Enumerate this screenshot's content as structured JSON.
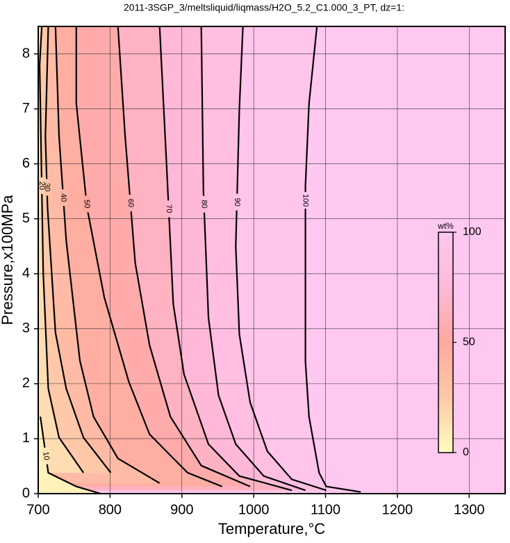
{
  "chart_data": {
    "type": "contour",
    "title": "2011-3SGP_3/meltsliquid/liqmass/H2O_5.2_C1.000_3_PT, dz=1:",
    "x_label": "Temperature,°C",
    "y_label": "Pressure,x100MPa",
    "xlim": [
      700,
      1350
    ],
    "ylim": [
      0,
      8.5
    ],
    "xticks": [
      700,
      800,
      900,
      1000,
      1100,
      1200,
      1300
    ],
    "yticks": [
      0,
      1,
      2,
      3,
      4,
      5,
      6,
      7,
      8
    ],
    "grid": true,
    "colormap": [
      "#fffcc0",
      "#ffc8a8",
      "#ffa8a0",
      "#ffb8d8",
      "#ffc8f0"
    ],
    "colorbar": {
      "label": "wt%",
      "lim": [
        0,
        100
      ],
      "ticks": [
        0,
        50,
        100
      ]
    },
    "contours": [
      {
        "level": 100,
        "x": [
          1088,
          1077,
          1072,
          1072,
          1077,
          1091,
          1101,
          1149
        ],
        "y": [
          8.5,
          7.1,
          5.6,
          2.4,
          1.4,
          0.38,
          0.13,
          0.03
        ]
      },
      {
        "level": 90,
        "x": [
          985,
          980,
          975,
          980,
          995,
          1019,
          1053,
          1101
        ],
        "y": [
          8.5,
          7.0,
          4.5,
          2.9,
          1.66,
          0.77,
          0.26,
          0.06
        ]
      },
      {
        "level": 80,
        "x": [
          927,
          930,
          937,
          951,
          975,
          1014,
          1072
        ],
        "y": [
          8.5,
          5.5,
          3.2,
          1.79,
          0.9,
          0.32,
          0.06
        ]
      },
      {
        "level": 70,
        "x": [
          869,
          879,
          888,
          903,
          937,
          980,
          1053
        ],
        "y": [
          8.5,
          5.9,
          3.45,
          2.17,
          0.9,
          0.32,
          0.06
        ]
      },
      {
        "level": 60,
        "x": [
          811,
          821,
          835,
          855,
          884,
          927,
          995
        ],
        "y": [
          8.5,
          6.5,
          4.2,
          2.7,
          1.4,
          0.51,
          0.13
        ]
      },
      {
        "level": 50,
        "x": [
          753,
          753,
          768,
          792,
          826,
          855,
          908,
          956
        ],
        "y": [
          8.5,
          7.1,
          5.2,
          3.57,
          2.04,
          1.08,
          0.38,
          0.13
        ]
      },
      {
        "level": 40,
        "x": [
          724,
          729,
          739,
          758,
          777,
          811,
          869
        ],
        "y": [
          8.5,
          6.5,
          4.6,
          2.42,
          1.4,
          0.64,
          0.19
        ]
      },
      {
        "level": 30,
        "x": [
          714,
          710,
          713,
          724,
          739,
          763,
          801
        ],
        "y": [
          8.5,
          6.5,
          5.2,
          2.93,
          1.91,
          1.02,
          0.38
        ]
      },
      {
        "level": 20,
        "x": [
          705,
          702,
          707,
          714,
          729,
          763
        ],
        "y": [
          8.5,
          7.8,
          4.0,
          1.91,
          1.02,
          0.38
        ]
      },
      {
        "level": 10,
        "x": [
          703,
          714,
          753,
          787
        ],
        "y": [
          1.4,
          0.38,
          0.13,
          0
        ]
      }
    ]
  }
}
